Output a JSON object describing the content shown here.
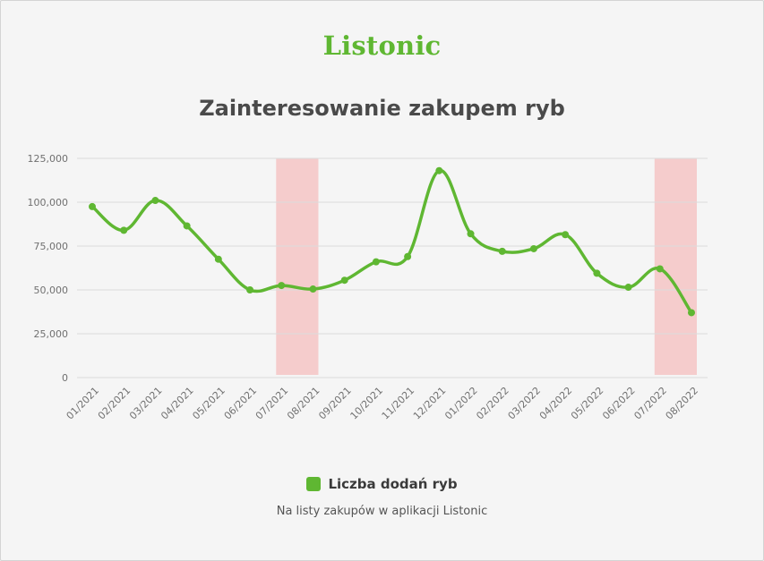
{
  "brand": {
    "name": "Listonic",
    "color": "#5fb732"
  },
  "chart_data": {
    "type": "line",
    "title": "Zainteresowanie zakupem ryb",
    "categories": [
      "01/2021",
      "02/2021",
      "03/2021",
      "04/2021",
      "05/2021",
      "06/2021",
      "07/2021",
      "08/2021",
      "09/2021",
      "10/2021",
      "11/2021",
      "12/2021",
      "01/2022",
      "02/2022",
      "03/2022",
      "04/2022",
      "05/2022",
      "06/2022",
      "07/2022",
      "08/2022"
    ],
    "series": [
      {
        "name": "Liczba dodań ryb",
        "values": [
          97500,
          84000,
          101000,
          86500,
          67500,
          50000,
          52500,
          50500,
          55500,
          66000,
          69000,
          118000,
          82000,
          72000,
          73500,
          81500,
          59500,
          51500,
          62000,
          37000
        ]
      }
    ],
    "yticks": [
      "0",
      "25,000",
      "50,000",
      "75,000",
      "100,000",
      "125,000"
    ],
    "ylim": [
      0,
      125000
    ],
    "grid": true,
    "highlight_ranges": [
      [
        "07/2021",
        "08/2021"
      ],
      [
        "07/2022",
        "08/2022"
      ]
    ],
    "line_color": "#5fb732",
    "highlight_color": "#f5cccc",
    "legend_position": "bottom"
  },
  "note": "Na listy zakupów w aplikacji Listonic"
}
